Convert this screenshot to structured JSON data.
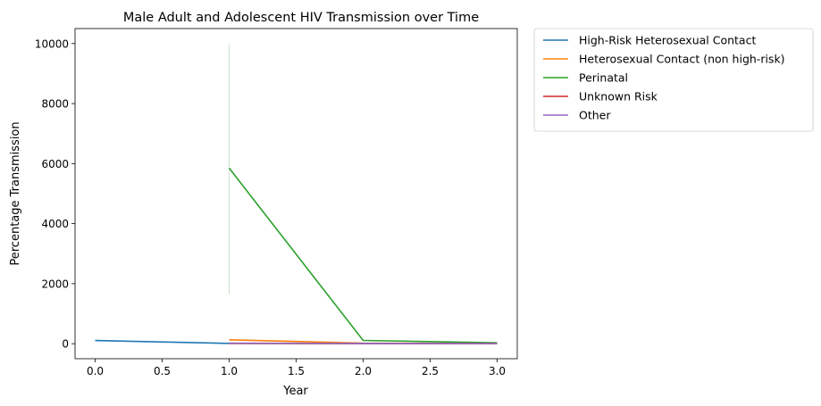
{
  "chart_data": {
    "type": "line",
    "title": "Male Adult and Adolescent HIV Transmission over Time",
    "xlabel": "Year",
    "ylabel": "Percentage Transmission",
    "xlim": [
      -0.15,
      3.15
    ],
    "ylim": [
      -500,
      10500
    ],
    "xticks": [
      0.0,
      0.5,
      1.0,
      1.5,
      2.0,
      2.5,
      3.0
    ],
    "xtick_labels": [
      "0.0",
      "0.5",
      "1.0",
      "1.5",
      "2.0",
      "2.5",
      "3.0"
    ],
    "yticks": [
      0,
      2000,
      4000,
      6000,
      8000,
      10000
    ],
    "ytick_labels": [
      "0",
      "2000",
      "4000",
      "6000",
      "8000",
      "10000"
    ],
    "grid": false,
    "legend_placement": "outside upper right",
    "series": [
      {
        "name": "High-Risk Heterosexual Contact",
        "color": "#1f77b4",
        "points": [
          [
            0,
            105
          ],
          [
            1,
            10
          ],
          [
            2,
            5
          ],
          [
            3,
            5
          ]
        ]
      },
      {
        "name": "Heterosexual Contact (non high-risk)",
        "color": "#ff7f0e",
        "points": [
          [
            1,
            130
          ],
          [
            2,
            20
          ],
          [
            3,
            10
          ]
        ]
      },
      {
        "name": "Perinatal",
        "color": "#2ca02c",
        "points": [
          [
            1,
            5850
          ],
          [
            2,
            110
          ],
          [
            3,
            30
          ]
        ],
        "band": {
          "x": 1,
          "low": 1650,
          "high": 10000
        }
      },
      {
        "name": "Unknown Risk",
        "color": "#d62728",
        "points": [
          [
            1,
            10
          ],
          [
            2,
            5
          ],
          [
            3,
            5
          ]
        ]
      },
      {
        "name": "Other",
        "color": "#9467bd",
        "points": [
          [
            1,
            20
          ],
          [
            2,
            10
          ],
          [
            3,
            5
          ]
        ]
      }
    ]
  }
}
